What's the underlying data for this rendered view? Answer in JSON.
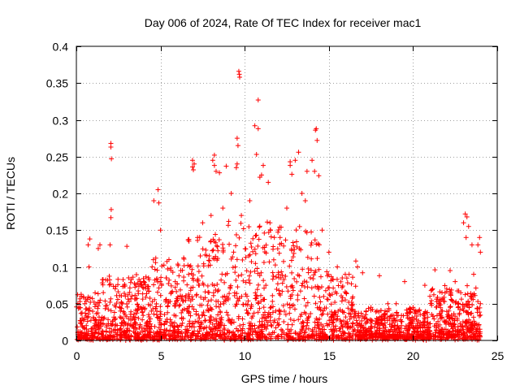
{
  "chart_data": {
    "type": "scatter",
    "title": "Day 006 of 2024, Rate Of TEC Index for receiver mac1",
    "xlabel": "GPS time / hours",
    "ylabel": "ROTI / TECUs",
    "xlim": [
      0,
      25
    ],
    "ylim": [
      0,
      0.4
    ],
    "x_ticks": [
      0,
      5,
      10,
      15,
      20,
      25
    ],
    "y_ticks": [
      0,
      0.05,
      0.1,
      0.15,
      0.2,
      0.25,
      0.3,
      0.35,
      0.4
    ],
    "x_tick_labels": [
      "0",
      "5",
      "10",
      "15",
      "20",
      "25"
    ],
    "y_tick_labels": [
      "0",
      "0.05",
      "0.1",
      "0.15",
      "0.2",
      "0.25",
      "0.3",
      "0.35",
      "0.4"
    ],
    "grid": true,
    "marker": "+",
    "marker_color": "#ff0000",
    "series": [
      {
        "points": [
          [
            2.05,
            0.268
          ],
          [
            2.05,
            0.263
          ],
          [
            2.08,
            0.247
          ],
          [
            2.07,
            0.178
          ],
          [
            2.05,
            0.167
          ],
          [
            9.65,
            0.366
          ],
          [
            9.68,
            0.362
          ],
          [
            9.7,
            0.358
          ],
          [
            10.8,
            0.327
          ],
          [
            10.6,
            0.292
          ],
          [
            10.8,
            0.288
          ],
          [
            14.25,
            0.288
          ],
          [
            14.2,
            0.286
          ],
          [
            14.3,
            0.272
          ],
          [
            9.55,
            0.275
          ],
          [
            9.6,
            0.265
          ],
          [
            9.55,
            0.24
          ],
          [
            9.5,
            0.235
          ],
          [
            10.7,
            0.253
          ],
          [
            11.1,
            0.238
          ],
          [
            11.0,
            0.225
          ],
          [
            10.9,
            0.222
          ],
          [
            11.4,
            0.215
          ],
          [
            13.2,
            0.256
          ],
          [
            13.0,
            0.245
          ],
          [
            12.7,
            0.243
          ],
          [
            12.7,
            0.238
          ],
          [
            12.8,
            0.226
          ],
          [
            8.2,
            0.252
          ],
          [
            8.1,
            0.245
          ],
          [
            8.2,
            0.238
          ],
          [
            8.3,
            0.23
          ],
          [
            8.5,
            0.228
          ],
          [
            8.9,
            0.237
          ],
          [
            6.9,
            0.245
          ],
          [
            7.0,
            0.24
          ],
          [
            6.9,
            0.236
          ],
          [
            6.95,
            0.232
          ],
          [
            14.0,
            0.245
          ],
          [
            14.15,
            0.23
          ],
          [
            13.7,
            0.23
          ],
          [
            14.4,
            0.224
          ],
          [
            4.85,
            0.205
          ],
          [
            4.6,
            0.19
          ],
          [
            4.9,
            0.187
          ],
          [
            5.0,
            0.15
          ],
          [
            23.1,
            0.172
          ],
          [
            23.2,
            0.168
          ],
          [
            23.0,
            0.16
          ],
          [
            23.3,
            0.155
          ],
          [
            23.15,
            0.14
          ],
          [
            23.5,
            0.13
          ],
          [
            23.95,
            0.14
          ],
          [
            23.85,
            0.13
          ],
          [
            24.0,
            0.12
          ],
          [
            0.8,
            0.138
          ],
          [
            0.7,
            0.13
          ],
          [
            0.75,
            0.1
          ],
          [
            1.4,
            0.13
          ],
          [
            1.3,
            0.125
          ],
          [
            2.0,
            0.13
          ],
          [
            3.0,
            0.128
          ],
          [
            16.6,
            0.108
          ],
          [
            16.7,
            0.1
          ],
          [
            17.0,
            0.092
          ],
          [
            19.5,
            0.08
          ],
          [
            21.3,
            0.096
          ],
          [
            22.2,
            0.095
          ],
          [
            20.7,
            0.075
          ],
          [
            18.0,
            0.088
          ],
          [
            1.6,
            0.065
          ],
          [
            3.8,
            0.08
          ],
          [
            4.5,
            0.1
          ],
          [
            5.5,
            0.11
          ],
          [
            6.2,
            0.095
          ],
          [
            7.2,
            0.14
          ],
          [
            7.5,
            0.16
          ],
          [
            8.0,
            0.17
          ],
          [
            8.7,
            0.18
          ],
          [
            9.2,
            0.2
          ],
          [
            9.8,
            0.17
          ],
          [
            10.3,
            0.19
          ],
          [
            11.5,
            0.16
          ],
          [
            12.1,
            0.14
          ],
          [
            12.5,
            0.18
          ],
          [
            13.4,
            0.2
          ],
          [
            13.6,
            0.19
          ],
          [
            14.6,
            0.15
          ],
          [
            15.0,
            0.12
          ],
          [
            15.5,
            0.1
          ],
          [
            16.2,
            0.09
          ],
          [
            0.3,
            0.06
          ],
          [
            0.5,
            0.05
          ],
          [
            17.5,
            0.045
          ],
          [
            18.5,
            0.05
          ],
          [
            19.0,
            0.05
          ],
          [
            20.0,
            0.045
          ],
          [
            21.0,
            0.06
          ],
          [
            22.0,
            0.07
          ],
          [
            22.5,
            0.08
          ],
          [
            23.6,
            0.09
          ],
          [
            24.0,
            0.05
          ],
          [
            23.9,
            0.02
          ]
        ]
      }
    ]
  }
}
